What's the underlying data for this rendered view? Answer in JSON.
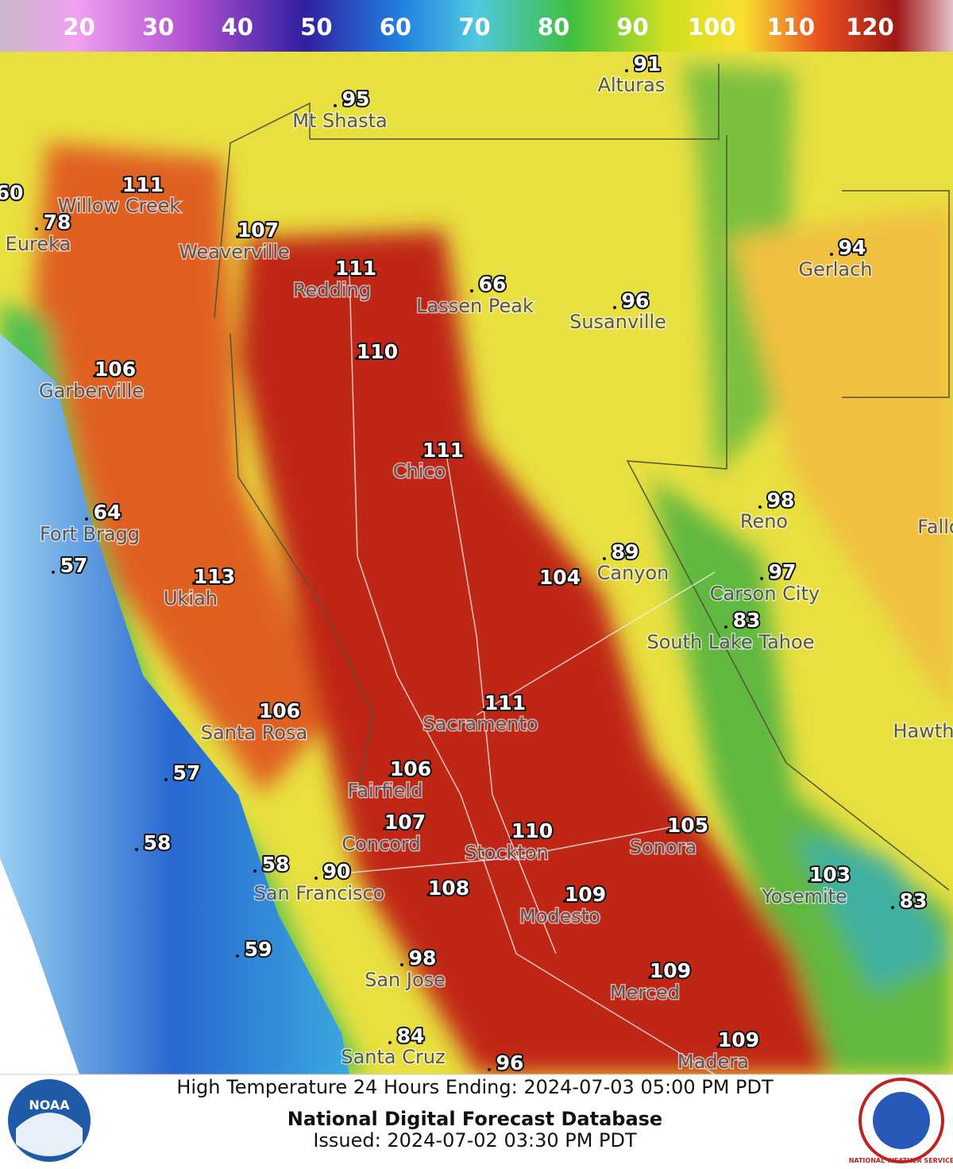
{
  "legend": {
    "range": [
      10,
      130
    ],
    "ticks": [
      20,
      30,
      40,
      50,
      60,
      70,
      80,
      90,
      100,
      110,
      120
    ]
  },
  "stations": [
    {
      "name": "Alturas",
      "temp": 91
    },
    {
      "name": "Mt Shasta",
      "temp": 95
    },
    {
      "temp": 60
    },
    {
      "name": "Willow Creek",
      "temp": 111
    },
    {
      "name": "Eureka",
      "temp": 78
    },
    {
      "name": "Weaverville",
      "temp": 107
    },
    {
      "name": "Redding",
      "temp": 111
    },
    {
      "name": "Lassen Peak",
      "temp": 66
    },
    {
      "name": "Susanville",
      "temp": 96
    },
    {
      "name": "Gerlach",
      "temp": 94
    },
    {
      "temp": 110
    },
    {
      "name": "Garberville",
      "temp": 106
    },
    {
      "name": "Chico",
      "temp": 111
    },
    {
      "name": "Reno",
      "temp": 98
    },
    {
      "name": "Fallon"
    },
    {
      "name": "Fort Bragg",
      "temp": 64
    },
    {
      "name": "Canyon",
      "temp": 89
    },
    {
      "temp": 104
    },
    {
      "temp": 57
    },
    {
      "name": "Ukiah",
      "temp": 113
    },
    {
      "name": "Carson City",
      "temp": 97
    },
    {
      "name": "South Lake Tahoe",
      "temp": 83
    },
    {
      "name": "Sacramento",
      "temp": 111
    },
    {
      "name": "Santa Rosa",
      "temp": 106
    },
    {
      "name": "Hawthorne"
    },
    {
      "temp": 57
    },
    {
      "name": "Fairfield",
      "temp": 106
    },
    {
      "name": "Concord",
      "temp": 107
    },
    {
      "name": "Stockton",
      "temp": 110
    },
    {
      "name": "Sonora",
      "temp": 105
    },
    {
      "temp": 58
    },
    {
      "temp": 58
    },
    {
      "name": "San Francisco",
      "temp": 90
    },
    {
      "name": "Yosemite",
      "temp": 103
    },
    {
      "temp": 83
    },
    {
      "temp": 108
    },
    {
      "name": "Modesto",
      "temp": 109
    },
    {
      "temp": 59
    },
    {
      "name": "San Jose",
      "temp": 98
    },
    {
      "name": "Merced",
      "temp": 109
    },
    {
      "name": "Santa Cruz",
      "temp": 84
    },
    {
      "temp": 96
    },
    {
      "name": "Madera",
      "temp": 109
    }
  ],
  "footer": {
    "line1": "High Temperature 24 Hours Ending: 2024-07-03 05:00 PM PDT",
    "line2": "National Digital Forecast Database",
    "line3": "Issued: 2024-07-02 03:30 PM PDT"
  },
  "logos": {
    "noaa": "NOAA",
    "nws": "NATIONAL WEATHER SERVICE"
  }
}
